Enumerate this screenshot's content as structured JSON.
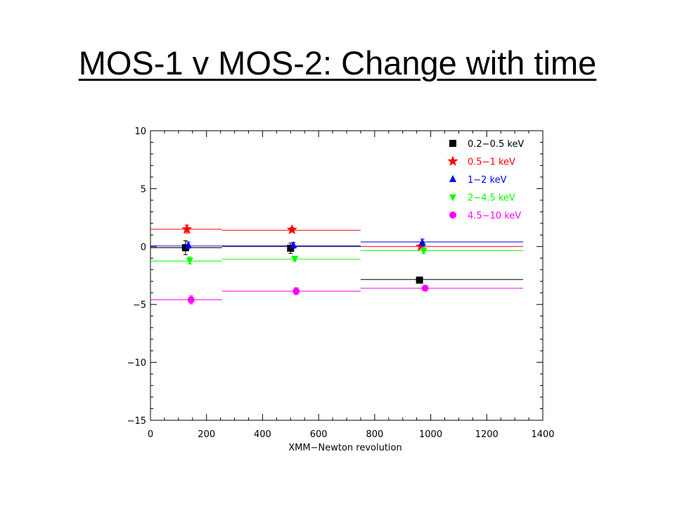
{
  "slide": {
    "title": "MOS-1 v MOS-2: Change with time"
  },
  "chart_data": {
    "type": "scatter",
    "title": "",
    "xlabel": "XMM−Newton revolution",
    "ylabel": "",
    "xlim": [
      0,
      1400
    ],
    "ylim": [
      -15,
      10
    ],
    "xticks": [
      0,
      200,
      400,
      600,
      800,
      1000,
      1200,
      1400
    ],
    "yticks": [
      10,
      5,
      0,
      -5,
      -10,
      -15
    ],
    "ytick_labels": [
      "10",
      "5",
      "0",
      "−5",
      "−10",
      "−15"
    ],
    "legend_position": "top-right",
    "grid": false,
    "series": [
      {
        "name": "0.2−0.5 keV",
        "color": "#000000",
        "marker": "square",
        "points": [
          {
            "x": 125,
            "y": -0.1,
            "yerr": 0.6
          },
          {
            "x": 500,
            "y": -0.15,
            "yerr": 0.45
          },
          {
            "x": 960,
            "y": -2.9,
            "yerr": 0.25
          }
        ],
        "levels": [
          {
            "x0": 0,
            "x1": 255,
            "y": -0.1
          },
          {
            "x0": 255,
            "x1": 750,
            "y": 0.05
          },
          {
            "x0": 750,
            "x1": 1330,
            "y": -2.85
          }
        ]
      },
      {
        "name": "0.5−1 keV",
        "color": "#ff0000",
        "marker": "star",
        "points": [
          {
            "x": 130,
            "y": 1.5,
            "yerr": 0.35
          },
          {
            "x": 505,
            "y": 1.45,
            "yerr": 0.2
          },
          {
            "x": 965,
            "y": 0.0,
            "yerr": 0.2
          }
        ],
        "levels": [
          {
            "x0": 0,
            "x1": 255,
            "y": 1.5
          },
          {
            "x0": 255,
            "x1": 750,
            "y": 1.4
          },
          {
            "x0": 750,
            "x1": 1330,
            "y": 0.0
          }
        ]
      },
      {
        "name": "1−2 keV",
        "color": "#0000ff",
        "marker": "triangle-up",
        "points": [
          {
            "x": 135,
            "y": 0.1,
            "yerr": 0.3
          },
          {
            "x": 510,
            "y": 0.1,
            "yerr": 0.25
          },
          {
            "x": 970,
            "y": 0.35,
            "yerr": 0.3
          }
        ],
        "levels": [
          {
            "x0": 0,
            "x1": 255,
            "y": 0.05
          },
          {
            "x0": 255,
            "x1": 750,
            "y": 0.0
          },
          {
            "x0": 750,
            "x1": 1330,
            "y": 0.4
          }
        ]
      },
      {
        "name": "2−4.5 keV",
        "color": "#00ff00",
        "marker": "triangle-down",
        "points": [
          {
            "x": 140,
            "y": -1.2,
            "yerr": 0.3
          },
          {
            "x": 515,
            "y": -1.05,
            "yerr": 0.2
          },
          {
            "x": 975,
            "y": -0.35,
            "yerr": 0.25
          }
        ],
        "levels": [
          {
            "x0": 0,
            "x1": 255,
            "y": -1.25
          },
          {
            "x0": 255,
            "x1": 750,
            "y": -1.1
          },
          {
            "x0": 750,
            "x1": 1330,
            "y": -0.35
          }
        ]
      },
      {
        "name": "4.5−10 keV",
        "color": "#ff00ff",
        "marker": "circle",
        "points": [
          {
            "x": 145,
            "y": -4.6,
            "yerr": 0.35
          },
          {
            "x": 520,
            "y": -3.85,
            "yerr": 0.3
          },
          {
            "x": 980,
            "y": -3.6,
            "yerr": 0.2
          }
        ],
        "levels": [
          {
            "x0": 0,
            "x1": 255,
            "y": -4.6
          },
          {
            "x0": 255,
            "x1": 750,
            "y": -3.85
          },
          {
            "x0": 750,
            "x1": 1330,
            "y": -3.6
          }
        ]
      }
    ]
  }
}
